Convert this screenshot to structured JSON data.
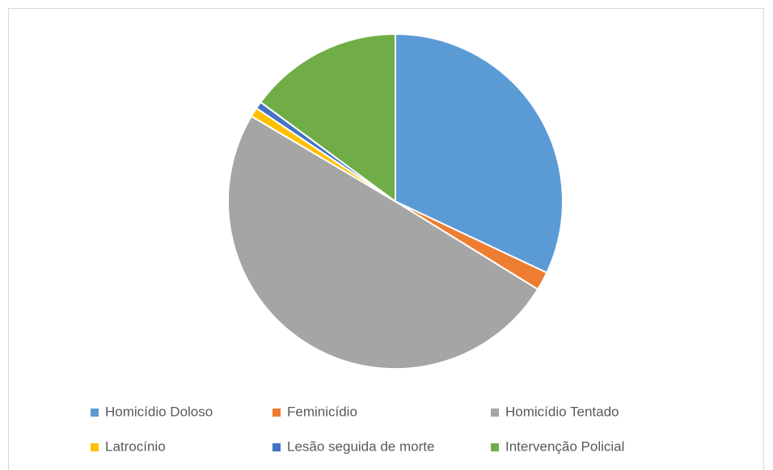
{
  "chart_data": {
    "type": "pie",
    "categories": [
      "Homicídio Doloso",
      "Feminicídio",
      "Homicídio Tentado",
      "Latrocínio",
      "Lesão seguida de morte",
      "Intervenção Policial"
    ],
    "values": [
      32,
      1.8,
      49.7,
      0.9,
      0.7,
      14.9
    ],
    "colors": [
      "#5b9bd5",
      "#ed7d31",
      "#a5a5a5",
      "#ffc000",
      "#4472c4",
      "#70ad47"
    ],
    "legend": "bottom"
  }
}
